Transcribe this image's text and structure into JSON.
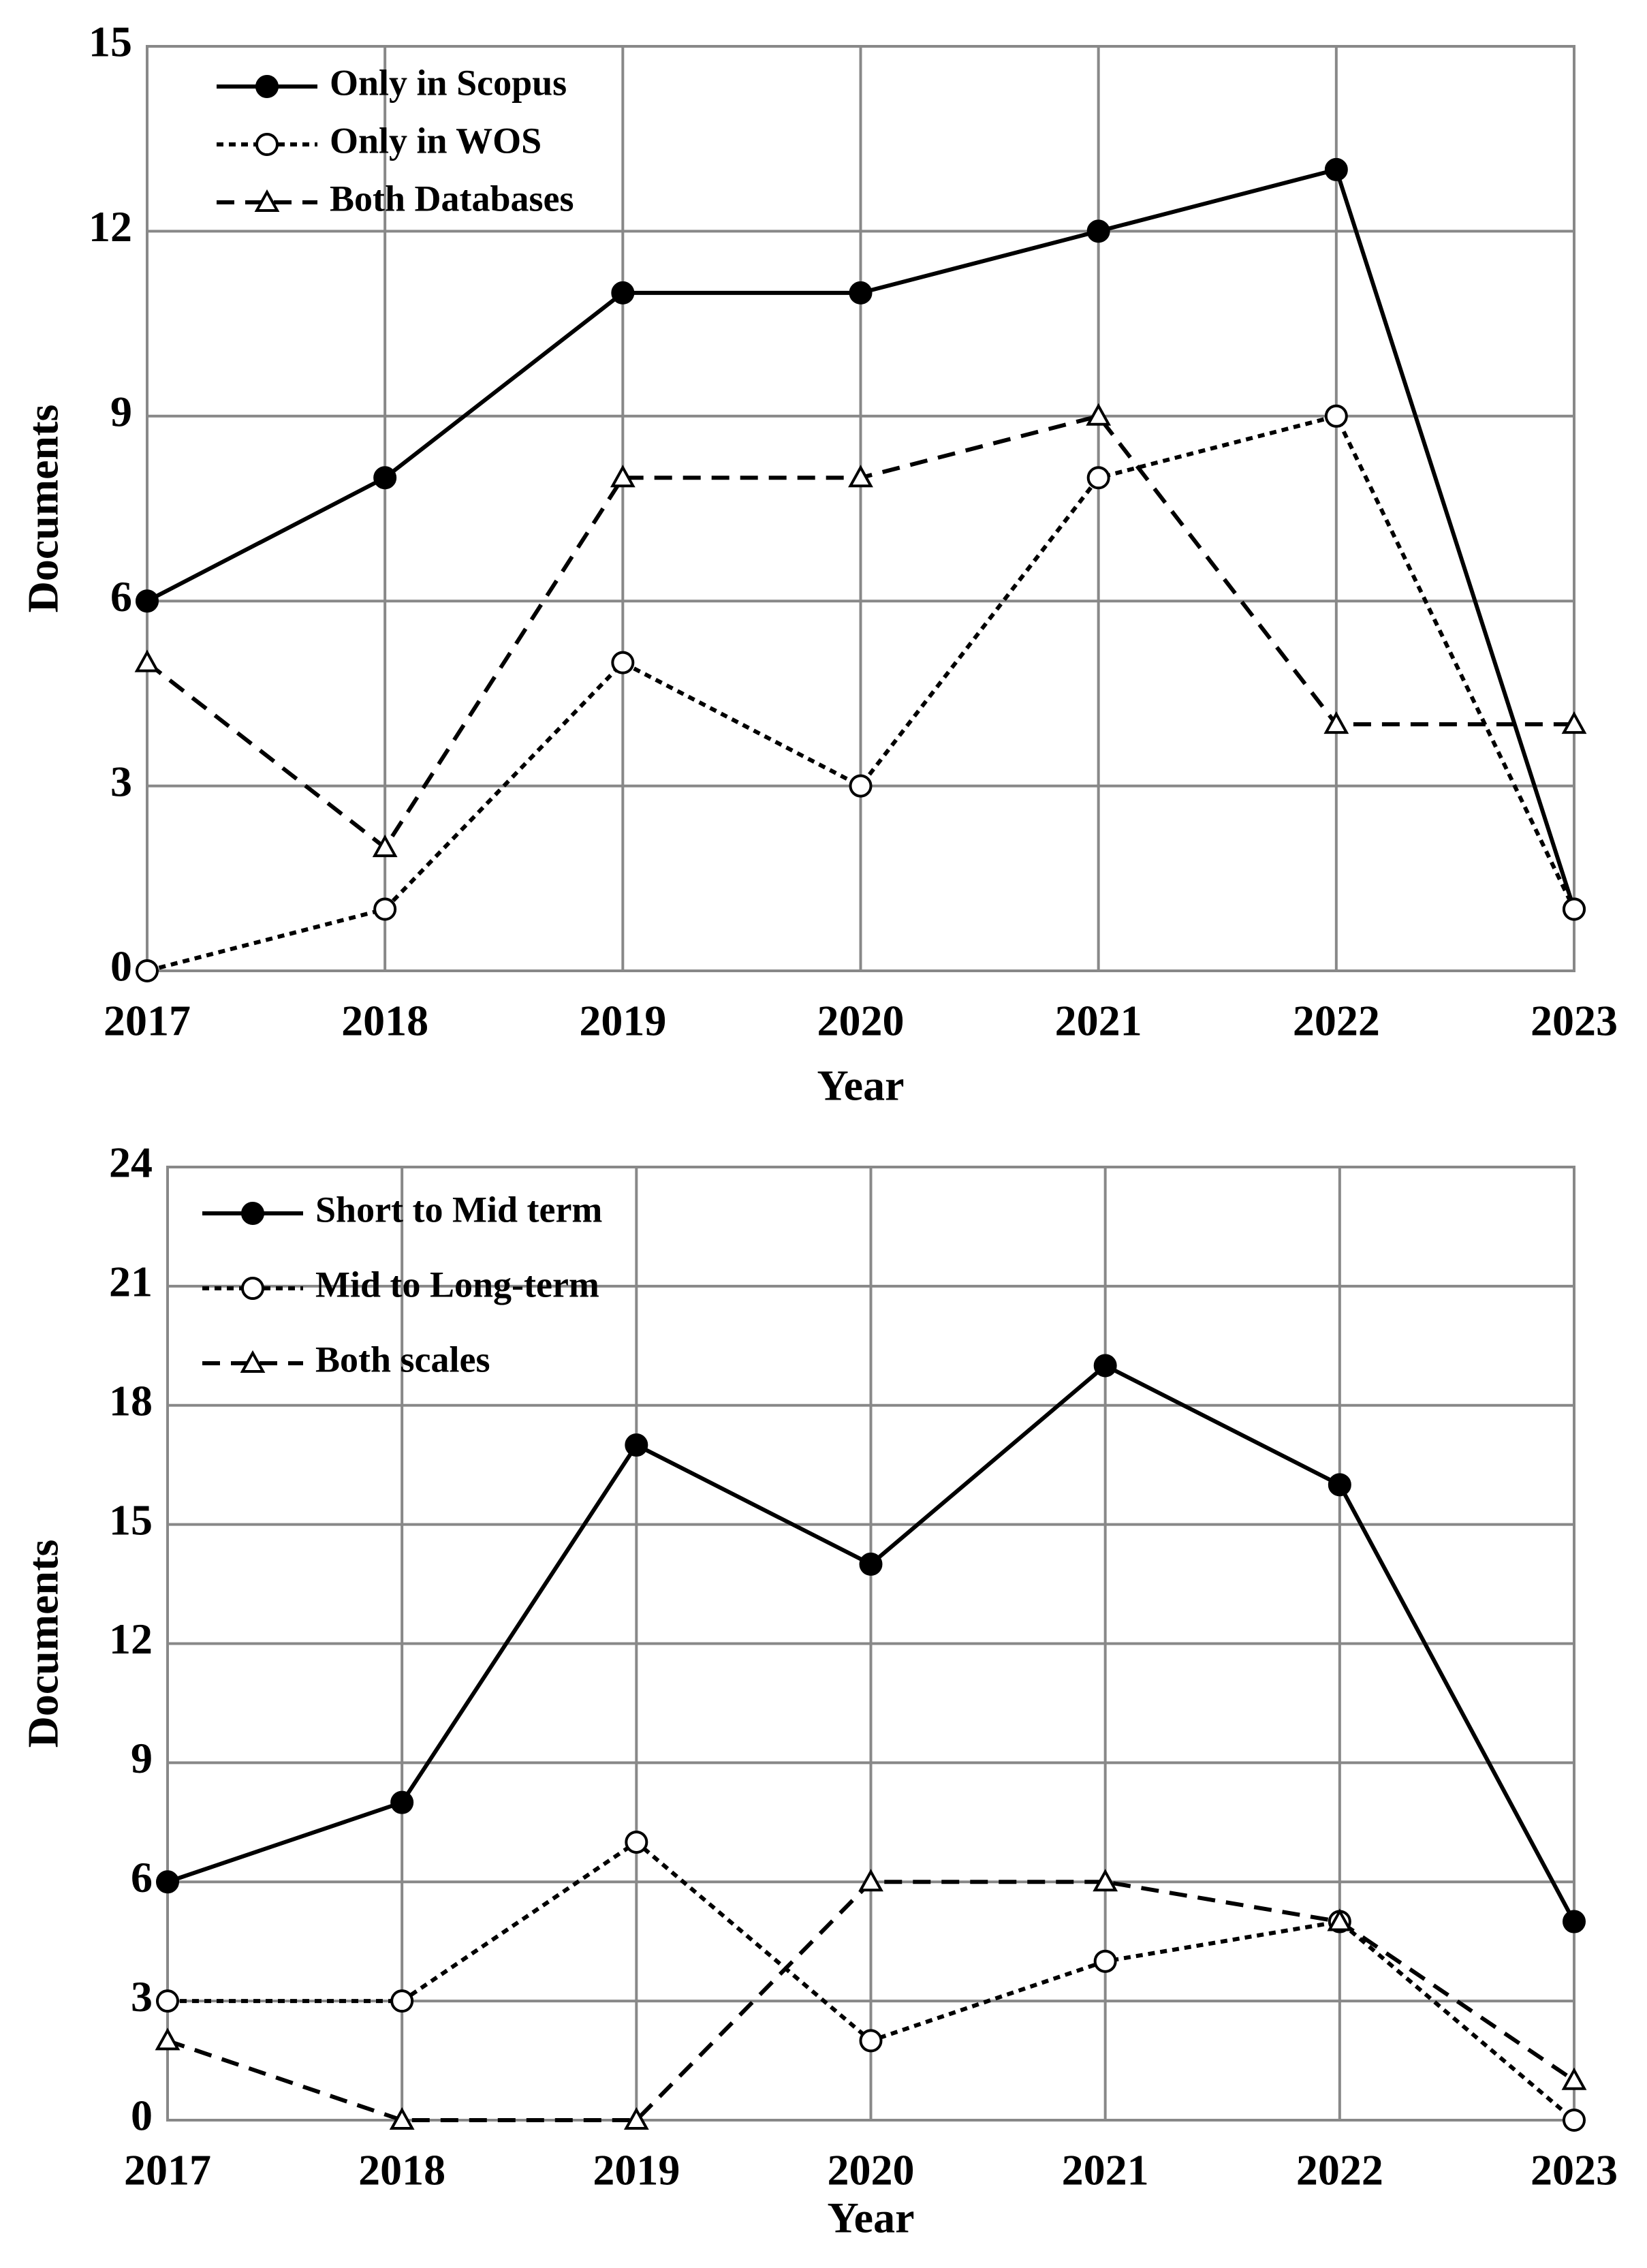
{
  "chart_data": [
    {
      "type": "line",
      "xlabel": "Year",
      "ylabel": "Documents",
      "x": [
        2017,
        2018,
        2019,
        2020,
        2021,
        2022,
        2023
      ],
      "xlim": [
        2017,
        2023
      ],
      "xticks": [
        2017,
        2018,
        2019,
        2020,
        2021,
        2022,
        2023
      ],
      "ylim": [
        0,
        15
      ],
      "yticks": [
        0,
        3,
        6,
        9,
        12,
        15
      ],
      "grid": true,
      "legend": "upper left",
      "series": [
        {
          "name": "Only in Scopus",
          "color": "#000000",
          "dash": "solid",
          "marker": "filled-circle",
          "values": [
            6,
            8,
            11,
            11,
            12,
            13,
            1
          ]
        },
        {
          "name": "Only in WOS",
          "color": "#000000",
          "dash": "dotted",
          "marker": "open-circle",
          "values": [
            0,
            1,
            5,
            3,
            8,
            9,
            1
          ]
        },
        {
          "name": "Both Databases",
          "color": "#000000",
          "dash": "dashed",
          "marker": "open-triangle",
          "values": [
            5,
            2,
            8,
            8,
            9,
            4,
            4
          ]
        }
      ]
    },
    {
      "type": "line",
      "xlabel": "Year",
      "ylabel": "Documents",
      "x": [
        2017,
        2018,
        2019,
        2020,
        2021,
        2022,
        2023
      ],
      "xlim": [
        2017,
        2023
      ],
      "xticks": [
        2017,
        2018,
        2019,
        2020,
        2021,
        2022,
        2023
      ],
      "ylim": [
        0,
        24
      ],
      "yticks": [
        0,
        3,
        6,
        9,
        12,
        15,
        18,
        21,
        24
      ],
      "grid": true,
      "legend": "upper left",
      "series": [
        {
          "name": "Short to Mid term",
          "color": "#000000",
          "dash": "solid",
          "marker": "filled-circle",
          "values": [
            6,
            8,
            17,
            14,
            19,
            16,
            5
          ]
        },
        {
          "name": "Mid to Long-term",
          "color": "#000000",
          "dash": "dotted",
          "marker": "open-circle",
          "values": [
            3,
            3,
            7,
            2,
            4,
            5,
            0
          ]
        },
        {
          "name": "Both scales",
          "color": "#000000",
          "dash": "dashed",
          "marker": "open-triangle",
          "values": [
            2,
            0,
            0,
            6,
            6,
            5,
            1
          ]
        }
      ]
    }
  ]
}
